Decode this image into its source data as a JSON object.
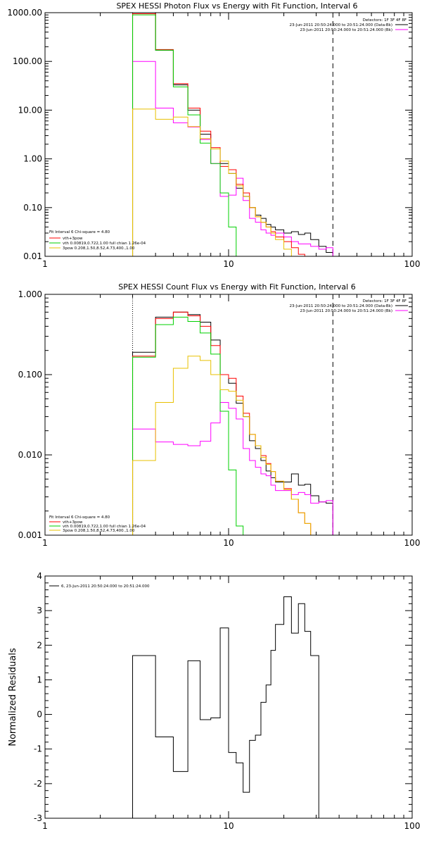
{
  "chart_data": [
    {
      "type": "line",
      "title": "SPEX HESSI Photon Flux vs Energy with Fit Function, Interval 6",
      "xscale": "log",
      "yscale": "log",
      "xlim": [
        1,
        100
      ],
      "ylim": [
        0.01,
        1000
      ],
      "xticks": [
        1,
        10,
        100
      ],
      "xticklabels": [
        "1",
        "10",
        "100"
      ],
      "yticks": [
        0.01,
        0.1,
        1,
        10,
        100,
        1000
      ],
      "yticklabels": [
        "0.01",
        "0.10",
        "1.00",
        "10.00",
        "100.00",
        "1000.00"
      ],
      "bin_edges": [
        3,
        4,
        5,
        6,
        7,
        8,
        9,
        10,
        11,
        12,
        13,
        14,
        15,
        16,
        17,
        18,
        20,
        22,
        24,
        26,
        28,
        31,
        34,
        37
      ],
      "vlines": [
        {
          "x": 3,
          "style": "dotted-orange"
        },
        {
          "x": 37,
          "style": "dashed"
        }
      ],
      "legend_topright": {
        "header": "Detectors: 1F 3F 4F 8F",
        "entries": [
          {
            "label": "23-Jun-2011 20:50:24.000 to 20:51:24.000 (Data-Bk)",
            "color": "#000000"
          },
          {
            "label": "23-Jun-2011 20:50:24.000 to 20:51:24.000 (Bk)",
            "color": "#ff00ff"
          }
        ]
      },
      "legend_bottomleft": {
        "header": "Fit Interval 6   Chi-square = 4.80",
        "entries": [
          {
            "label": "vth+3pow",
            "color": "#ff0000"
          },
          {
            "label": "vth 0.00819,0.722,1.00   full chian 1.26e-04",
            "color": "#00d000"
          },
          {
            "label": "3pow 0.208,1.50,8.52,4.73,400.,1.00",
            "color": "#e8c000"
          }
        ]
      },
      "series": [
        {
          "role": "data",
          "color": "#000000",
          "values": [
            1000,
            170,
            33,
            10,
            3.2,
            1.6,
            0.8,
            0.5,
            0.25,
            0.17,
            0.1,
            0.07,
            0.06,
            0.045,
            0.04,
            0.035,
            0.03,
            0.032,
            0.028,
            0.03,
            0.022,
            0.016,
            0.012
          ]
        },
        {
          "role": "background",
          "color": "#ff00ff",
          "values": [
            100,
            11,
            5.5,
            4.5,
            2.5,
            0.8,
            0.17,
            0.18,
            0.4,
            0.14,
            0.06,
            0.05,
            0.035,
            0.03,
            0.027,
            0.03,
            0.025,
            0.02,
            0.018,
            0.018,
            0.016,
            0.014,
            0.015
          ]
        },
        {
          "role": "vth+3pow",
          "color": "#ff0000",
          "values": [
            950,
            175,
            35,
            11,
            3.7,
            1.7,
            0.7,
            0.6,
            0.3,
            0.2,
            0.1,
            0.065,
            0.05,
            0.04,
            0.032,
            0.025,
            0.02,
            0.015,
            0.011
          ]
        },
        {
          "role": "vth",
          "color": "#00d000",
          "values": [
            900,
            170,
            30,
            8,
            2.1,
            0.8,
            0.2,
            0.04,
            0.01
          ]
        },
        {
          "role": "3pow",
          "color": "#e8c000",
          "values": [
            10.5,
            6.5,
            7.2,
            4.6,
            2.6,
            1.6,
            0.9,
            0.5,
            0.28,
            0.17,
            0.1,
            0.065,
            0.05,
            0.04,
            0.03,
            0.022,
            0.014,
            0.01
          ]
        }
      ]
    },
    {
      "type": "line",
      "title": "SPEX HESSI Count Flux vs Energy with Fit Function, Interval 6",
      "xscale": "log",
      "yscale": "log",
      "xlim": [
        1,
        100
      ],
      "ylim": [
        0.001,
        1
      ],
      "xticks": [
        1,
        10,
        100
      ],
      "xticklabels": [
        "1",
        "10",
        "100"
      ],
      "yticks": [
        0.001,
        0.01,
        0.1,
        1
      ],
      "yticklabels": [
        "0.001",
        "0.010",
        "0.100",
        "1.000"
      ],
      "bin_edges": [
        3,
        4,
        5,
        6,
        7,
        8,
        9,
        10,
        11,
        12,
        13,
        14,
        15,
        16,
        17,
        18,
        20,
        22,
        24,
        26,
        28,
        31,
        34,
        37
      ],
      "vlines": [
        {
          "x": 3,
          "style": "dotted"
        },
        {
          "x": 37,
          "style": "dashed"
        }
      ],
      "legend_topright": {
        "header": "Detectors: 1F 3F 4F 8F",
        "entries": [
          {
            "label": "23-Jun-2011 20:50:24.000 to 20:51:24.000 (Data-Bk)",
            "color": "#000000"
          },
          {
            "label": "23-Jun-2011 20:50:24.000 to 20:51:24.000 (Bk)",
            "color": "#ff00ff"
          }
        ]
      },
      "legend_bottomleft": {
        "header": "Fit Interval 6   Chi-square = 4.80",
        "entries": [
          {
            "label": "vth+3pow",
            "color": "#ff0000"
          },
          {
            "label": "vth 0.00819,0.722,1.00   full chian 1.26e-04",
            "color": "#00d000"
          },
          {
            "label": "3pow 0.208,1.50,8.52,4.73,400.,1.00",
            "color": "#e8c000"
          }
        ]
      },
      "series": [
        {
          "role": "data",
          "color": "#000000",
          "values": [
            0.19,
            0.52,
            0.6,
            0.56,
            0.45,
            0.27,
            0.1,
            0.078,
            0.044,
            0.03,
            0.015,
            0.012,
            0.0085,
            0.0063,
            0.0052,
            0.0046,
            0.0046,
            0.0058,
            0.0042,
            0.0043,
            0.0031,
            0.0026,
            0.0025
          ]
        },
        {
          "role": "background",
          "color": "#ff00ff",
          "values": [
            0.021,
            0.0145,
            0.0135,
            0.013,
            0.0148,
            0.025,
            0.045,
            0.038,
            0.028,
            0.012,
            0.0085,
            0.007,
            0.0058,
            0.0055,
            0.0042,
            0.0036,
            0.0036,
            0.0032,
            0.0034,
            0.0032,
            0.0025,
            0.0026,
            0.0027
          ]
        },
        {
          "role": "vth+3pow",
          "color": "#ff0000",
          "values": [
            0.17,
            0.5,
            0.6,
            0.54,
            0.4,
            0.23,
            0.1,
            0.09,
            0.054,
            0.033,
            0.018,
            0.013,
            0.0098,
            0.0078,
            0.0062,
            0.0047,
            0.0038,
            0.0028,
            0.0019,
            0.0014,
            0.001
          ]
        },
        {
          "role": "vth",
          "color": "#00d000",
          "values": [
            0.165,
            0.42,
            0.52,
            0.46,
            0.33,
            0.18,
            0.035,
            0.0065,
            0.0013,
            0.001
          ]
        },
        {
          "role": "3pow",
          "color": "#e8c000",
          "values": [
            0.0085,
            0.045,
            0.12,
            0.17,
            0.15,
            0.1,
            0.065,
            0.062,
            0.048,
            0.03,
            0.018,
            0.013,
            0.0093,
            0.0076,
            0.0062,
            0.0047,
            0.0037,
            0.0028,
            0.0019,
            0.0014,
            0.001
          ]
        }
      ]
    },
    {
      "type": "line",
      "title": "",
      "ylabel": "Normalized Residuals",
      "xscale": "log",
      "yscale": "linear",
      "xlim": [
        1,
        100
      ],
      "ylim": [
        -3,
        4
      ],
      "xticks": [
        1,
        10,
        100
      ],
      "xticklabels": [
        "1",
        "10",
        "100"
      ],
      "yticks": [
        -3,
        -2,
        -1,
        0,
        1,
        2,
        3,
        4
      ],
      "yticklabels": [
        "-3",
        "-2",
        "-1",
        "0",
        "1",
        "2",
        "3",
        "4"
      ],
      "bin_edges": [
        3,
        4,
        5,
        6,
        7,
        8,
        9,
        10,
        11,
        12,
        13,
        14,
        15,
        16,
        17,
        18,
        20,
        22,
        24,
        26,
        28,
        31,
        34,
        37
      ],
      "legend_topleft": {
        "entries": [
          {
            "label": "6, 23-Jun-2011 20:50:24.000 to 20:51:24.000",
            "color": "#000000"
          }
        ]
      },
      "series": [
        {
          "role": "residuals",
          "color": "#000000",
          "values": [
            1.7,
            -0.65,
            -1.65,
            1.55,
            -0.15,
            -0.1,
            2.5,
            -1.1,
            -1.4,
            -2.25,
            -0.75,
            -0.6,
            0.35,
            0.85,
            1.85,
            2.6,
            3.4,
            2.35,
            3.2,
            2.4,
            1.7
          ]
        }
      ]
    }
  ]
}
